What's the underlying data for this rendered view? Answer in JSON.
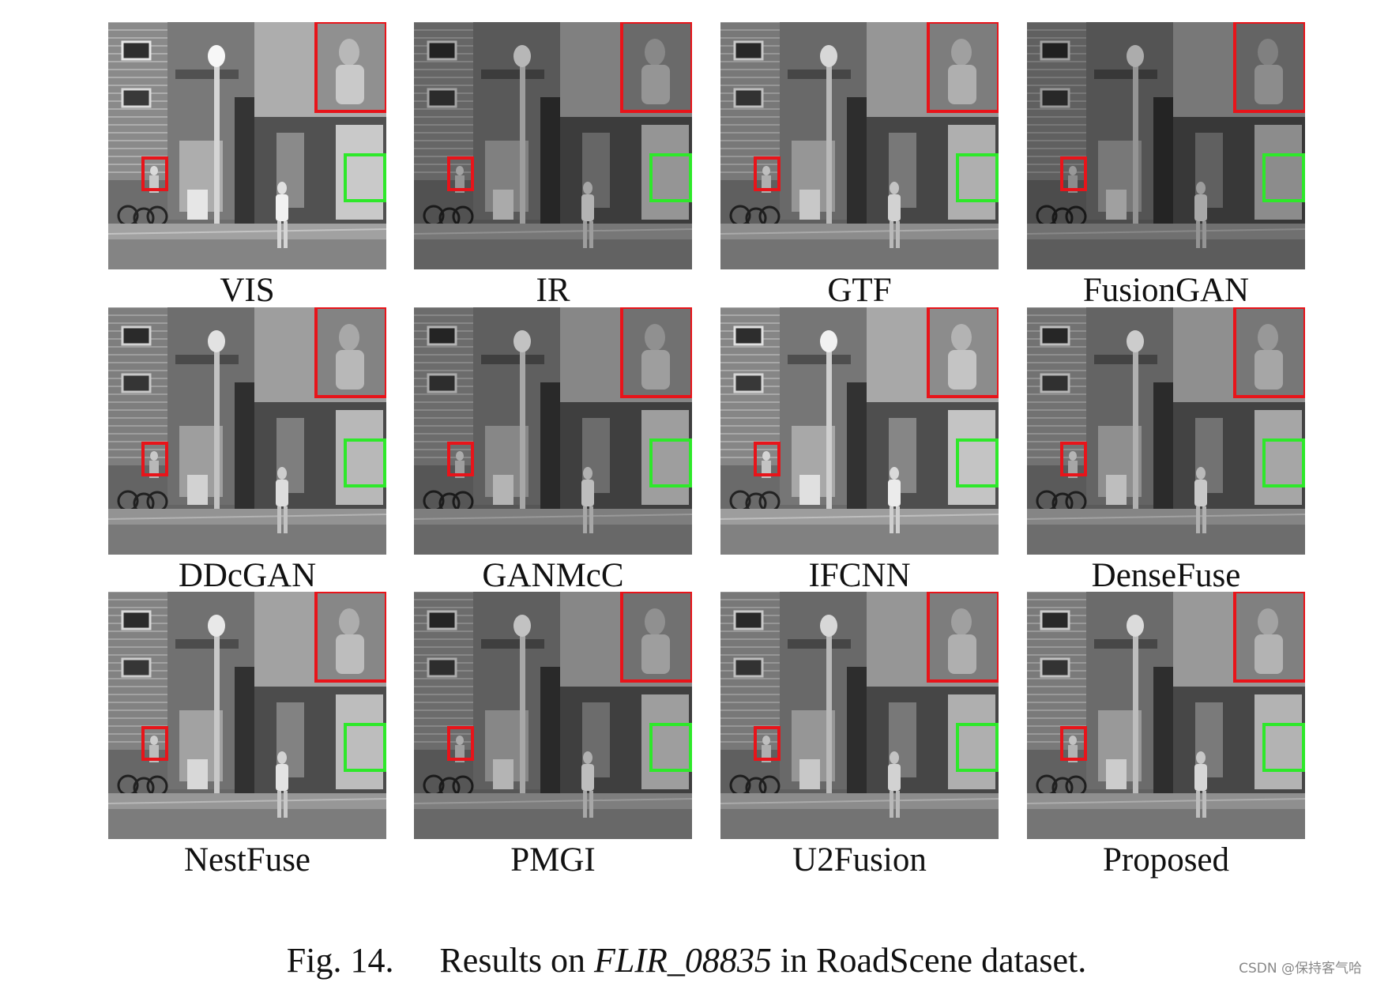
{
  "panels": [
    {
      "label": "VIS"
    },
    {
      "label": "IR"
    },
    {
      "label": "GTF"
    },
    {
      "label": "FusionGAN"
    },
    {
      "label": "DDcGAN"
    },
    {
      "label": "GANMcC"
    },
    {
      "label": "IFCNN"
    },
    {
      "label": "DenseFuse"
    },
    {
      "label": "NestFuse"
    },
    {
      "label": "PMGI"
    },
    {
      "label": "U2Fusion"
    },
    {
      "label": "Proposed"
    }
  ],
  "caption": {
    "figure_number": "Fig. 14.",
    "text_before": "Results on ",
    "dataset_image": "FLIR_08835",
    "text_after": " in RoadScene dataset."
  },
  "watermark": "CSDN @保持客气哈",
  "colors": {
    "highlight_red": "#e8141a",
    "highlight_green": "#2ee82a"
  }
}
